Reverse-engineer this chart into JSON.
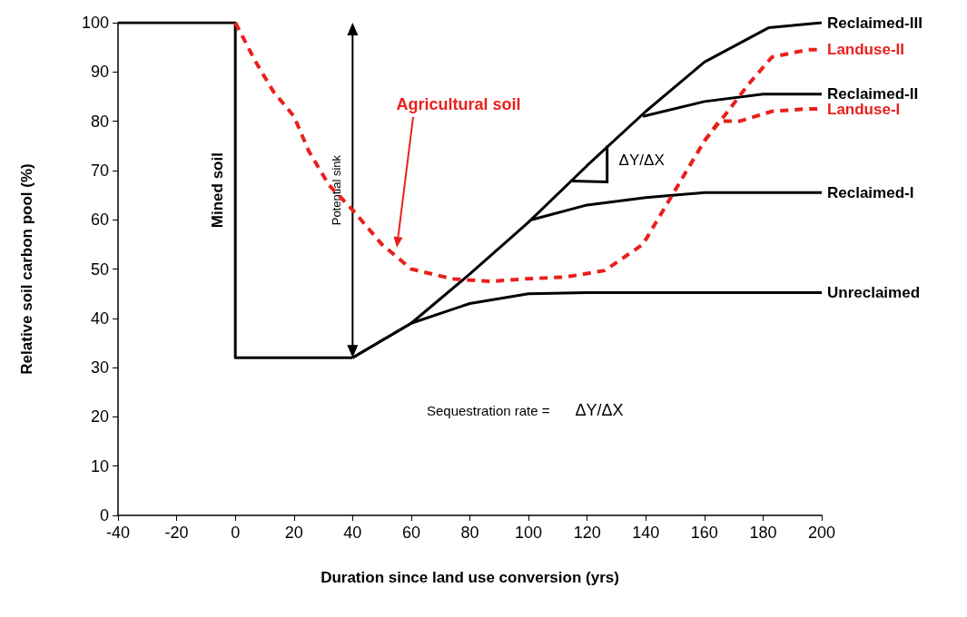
{
  "chart_data": {
    "type": "line",
    "xlabel": "Duration since land use conversion (yrs)",
    "ylabel": "Relative soil carbon pool (%)",
    "xlim": [
      -40,
      200
    ],
    "xticks": [
      -40,
      -20,
      0,
      20,
      40,
      60,
      80,
      100,
      120,
      140,
      160,
      180,
      200
    ],
    "ylim": [
      0,
      100
    ],
    "yticks": [
      0,
      10,
      20,
      30,
      40,
      50,
      60,
      70,
      80,
      90,
      100
    ],
    "grid": false,
    "legend": false,
    "marker": "none",
    "series": [
      {
        "name": "Mined soil",
        "color": "#000000",
        "line_style": "solid",
        "x": [
          -40,
          0,
          0,
          40
        ],
        "values": [
          100,
          100,
          32,
          32
        ]
      },
      {
        "name": "Reclaimed-III",
        "color": "#000000",
        "line_style": "solid",
        "x": [
          40,
          60,
          80,
          100,
          120,
          140,
          160,
          182,
          200
        ],
        "values": [
          32,
          39,
          49,
          59.5,
          71,
          82,
          92,
          99,
          100
        ]
      },
      {
        "name": "Reclaimed-II",
        "color": "#000000",
        "line_style": "solid",
        "x": [
          139,
          160,
          180,
          200
        ],
        "values": [
          81,
          84,
          85.5,
          85.5
        ]
      },
      {
        "name": "Reclaimed-I",
        "color": "#000000",
        "line_style": "solid",
        "x": [
          101,
          120,
          140,
          160,
          200
        ],
        "values": [
          60,
          63,
          64.5,
          65.5,
          65.5
        ]
      },
      {
        "name": "Unreclaimed",
        "color": "#000000",
        "line_style": "solid",
        "x": [
          40,
          60,
          80,
          100,
          120,
          200
        ],
        "values": [
          32,
          39,
          43,
          45,
          45.2,
          45.2
        ]
      },
      {
        "name": "Landuse-II",
        "color": "#e8201c",
        "line_style": "dashed",
        "x": [
          0,
          7,
          13,
          20,
          25,
          32,
          40,
          50,
          60,
          74,
          87,
          99,
          113,
          126,
          139,
          152,
          160,
          168,
          175,
          183,
          195,
          200
        ],
        "values": [
          100,
          92,
          86,
          81,
          74,
          67,
          62,
          55,
          50,
          48,
          47.5,
          48,
          48.4,
          49.7,
          55,
          68,
          76,
          82,
          87.5,
          93,
          94.5,
          94.5
        ]
      },
      {
        "name": "Landuse-I",
        "color": "#e8201c",
        "line_style": "dashed",
        "x": [
          160,
          165,
          172,
          183,
          195,
          200
        ],
        "values": [
          76,
          80,
          80,
          82,
          82.5,
          82.5
        ]
      }
    ],
    "annotations": [
      "Potential sink",
      "Agricultural soil",
      {
        "text": "ΔY/ΔX",
        "x": 120,
        "y": 71
      },
      "Sequestration rate = ΔY/ΔX"
    ]
  }
}
